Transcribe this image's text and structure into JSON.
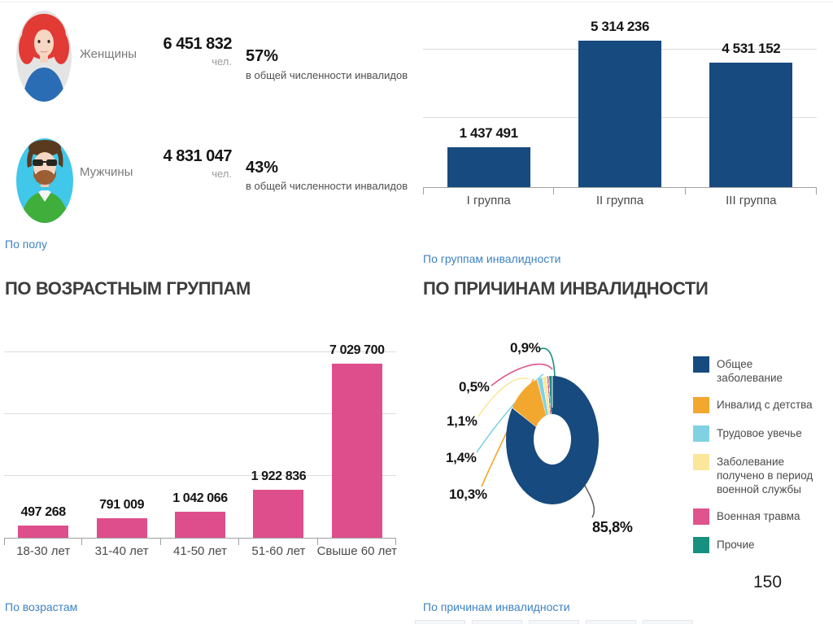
{
  "page_number": "150",
  "links": {
    "gender": "По полу",
    "groups": "По группам инвалидности",
    "ages": "По возрастам",
    "causes": "По причинам инвалидности"
  },
  "colors": {
    "navy": "#174a7e",
    "pink_bar": "#de4e8c",
    "orange": "#f2a72e",
    "light_blue": "#80d2e2",
    "pale_yellow": "#fae79b",
    "pink_legend": "#e0538c",
    "teal": "#16917f",
    "link_blue": "#3e82c4"
  },
  "chart_data": [
    {
      "type": "table",
      "title": "По полу",
      "rows": [
        {
          "label": "Женщины",
          "value": 6451832,
          "value_label": "6 451 832",
          "unit": "чел.",
          "percent": "57%",
          "caption": "в общей численности инвалидов"
        },
        {
          "label": "Мужчины",
          "value": 4831047,
          "value_label": "4 831 047",
          "unit": "чел.",
          "percent": "43%",
          "caption": "в общей численности инвалидов"
        }
      ]
    },
    {
      "type": "bar",
      "id": "groups",
      "title": "По группам инвалидности",
      "categories": [
        "I группа",
        "II группа",
        "III группа"
      ],
      "values": [
        1437491,
        5314236,
        4531152
      ],
      "value_labels": [
        "1 437 491",
        "5 314 236",
        "4 531 152"
      ],
      "bar_color": "#174a7e",
      "ylim": [
        0,
        6560000
      ],
      "gridlines": [
        2500000,
        5000000
      ],
      "grid_on": true,
      "legend_position": "none"
    },
    {
      "type": "bar",
      "id": "ages",
      "title": "ПО ВОЗРАСТНЫМ ГРУППАМ",
      "categories": [
        "18-30 лет",
        "31-40 лет",
        "41-50 лет",
        "51-60 лет",
        "Свыше 60 лет"
      ],
      "values": [
        497268,
        791009,
        1042066,
        1922836,
        7029700
      ],
      "value_labels": [
        "497 268",
        "791 009",
        "1 042 066",
        "1 922 836",
        "7 029 700"
      ],
      "bar_color": "#de4e8c",
      "ylim": [
        0,
        7880000
      ],
      "gridlines": [
        2500000,
        5000000,
        7500000
      ],
      "grid_on": true,
      "legend_position": "none"
    },
    {
      "type": "pie",
      "id": "causes",
      "donut": true,
      "title": "ПО ПРИЧИНАМ ИНВАЛИДНОСТИ",
      "legend_position": "right",
      "slices": [
        {
          "label": "Общее заболевание",
          "pct": 85.8,
          "pct_label": "85,8%",
          "color": "#174a7e"
        },
        {
          "label": "Инвалид с детства",
          "pct": 10.3,
          "pct_label": "10,3%",
          "color": "#f2a72e"
        },
        {
          "label": "Трудовое увечье",
          "pct": 1.4,
          "pct_label": "1,4%",
          "color": "#80d2e2"
        },
        {
          "label": "Заболевание получено в период военной службы",
          "pct": 1.1,
          "pct_label": "1,1%",
          "color": "#fae79b"
        },
        {
          "label": "Военная травма",
          "pct": 0.5,
          "pct_label": "0,5%",
          "color": "#e0538c"
        },
        {
          "label": "Прочие",
          "pct": 0.9,
          "pct_label": "0,9%",
          "color": "#16917f"
        }
      ]
    }
  ]
}
